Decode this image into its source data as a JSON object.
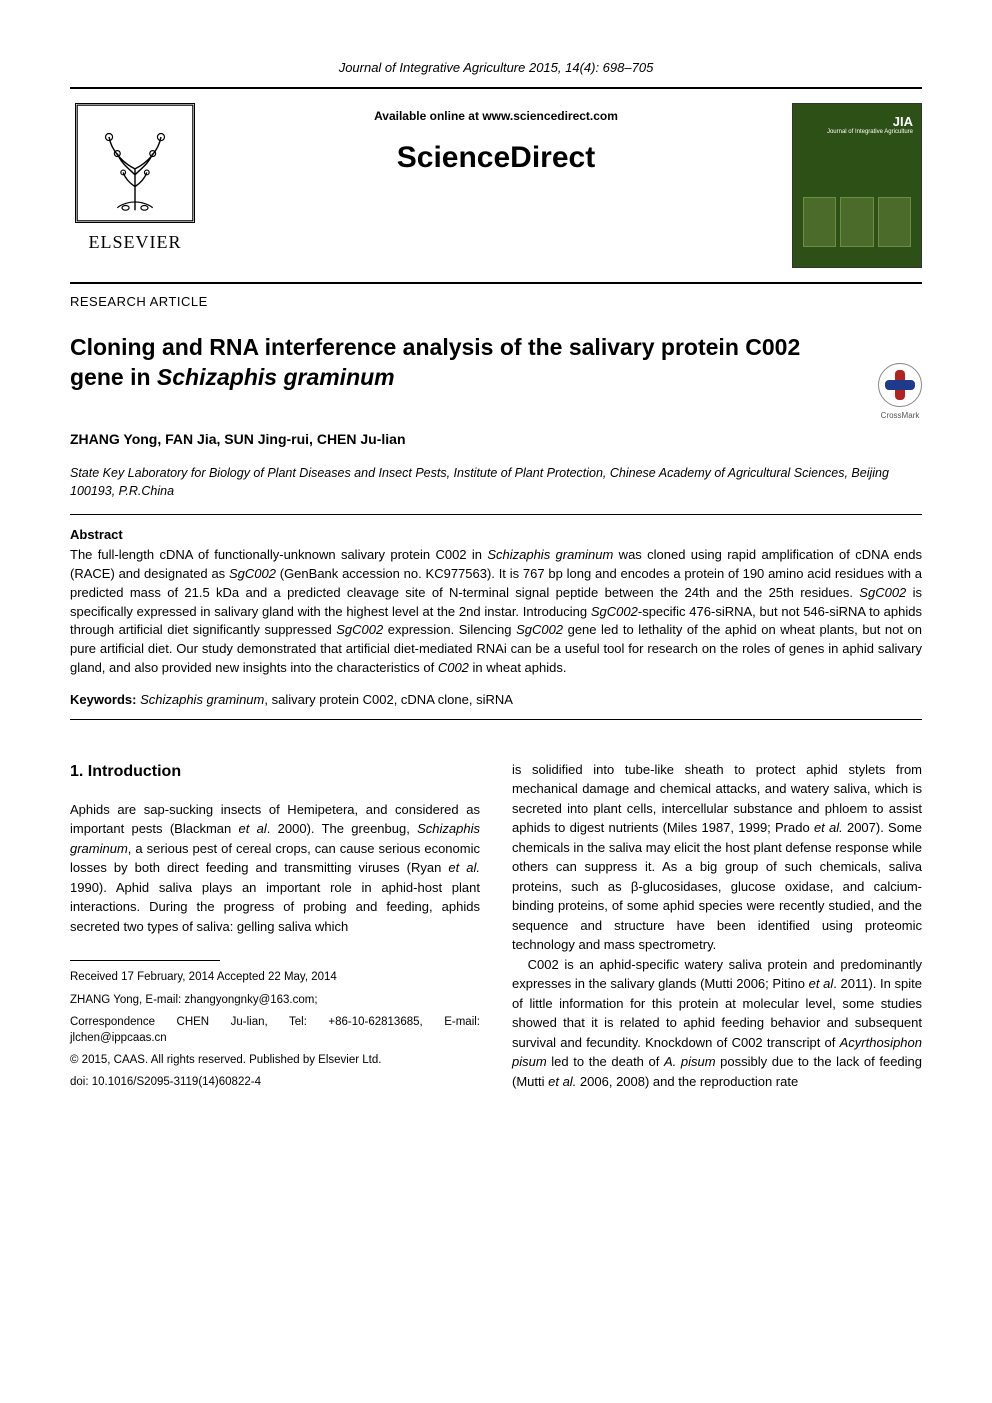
{
  "journal_header": "Journal of Integrative Agriculture  2015, 14(4): 698–705",
  "header": {
    "available_online": "Available online at www.sciencedirect.com",
    "brand": "ScienceDirect",
    "publisher_label": "ELSEVIER",
    "cover_label_top": "JIA",
    "cover_label_sub": "Journal of Integrative Agriculture"
  },
  "article_type": "RESEARCH  ARTICLE",
  "title_parts": {
    "prefix": "Cloning and RNA interference analysis of the salivary protein C002 gene in ",
    "species": "Schizaphis graminum"
  },
  "crossmark_label": "CrossMark",
  "authors": "ZHANG Yong, FAN Jia, SUN Jing-rui, CHEN Ju-lian",
  "affiliation": "State Key Laboratory for Biology of Plant Diseases and Insect Pests, Institute of Plant Protection, Chinese Academy of Agricultural Sciences, Beijing 100193, P.R.China",
  "abstract": {
    "heading": "Abstract",
    "text_segments": [
      {
        "t": "The full-length cDNA of functionally-unknown salivary protein C002 in ",
        "i": false
      },
      {
        "t": "Schizaphis graminum",
        "i": true
      },
      {
        "t": " was cloned using rapid amplification of cDNA ends (RACE) and designated as ",
        "i": false
      },
      {
        "t": "SgC002",
        "i": true
      },
      {
        "t": " (GenBank accession no. KC977563).  It is 767 bp long and encodes a protein of 190 amino acid residues with a predicted mass of 21.5 kDa and a predicted cleavage site of N-terminal signal peptide between the 24th and the 25th residues.  ",
        "i": false
      },
      {
        "t": "SgC002",
        "i": true
      },
      {
        "t": " is specifically expressed in salivary gland with the highest level at the 2nd instar.  Introducing ",
        "i": false
      },
      {
        "t": "SgC002",
        "i": true
      },
      {
        "t": "-specific 476-siRNA, but not 546-siRNA to aphids through artificial diet significantly suppressed ",
        "i": false
      },
      {
        "t": "SgC002",
        "i": true
      },
      {
        "t": " expression.  Silencing ",
        "i": false
      },
      {
        "t": "SgC002",
        "i": true
      },
      {
        "t": " gene led to lethality of the aphid on wheat plants, but not on pure artificial diet.  Our study demonstrated that artificial diet-mediated RNAi can be a useful tool for research on the roles of genes in aphid salivary gland, and also provided new insights into the characteristics of ",
        "i": false
      },
      {
        "t": "C002",
        "i": true
      },
      {
        "t": " in wheat aphids.",
        "i": false
      }
    ]
  },
  "keywords": {
    "label": "Keywords: ",
    "segments": [
      {
        "t": "Schizaphis graminum",
        "i": true
      },
      {
        "t": ", salivary protein C002, cDNA clone, siRNA",
        "i": false
      }
    ]
  },
  "left_column": {
    "heading": "1. Introduction",
    "para_segments": [
      {
        "t": "Aphids are sap-sucking insects of Hemipetera, and considered as important pests (Blackman ",
        "i": false
      },
      {
        "t": "et al",
        "i": true
      },
      {
        "t": ". 2000).  The greenbug, ",
        "i": false
      },
      {
        "t": "Schizaphis graminum",
        "i": true
      },
      {
        "t": ", a serious pest of cereal crops, can cause serious economic losses by both direct feeding and transmitting viruses (Ryan ",
        "i": false
      },
      {
        "t": "et al.",
        "i": true
      },
      {
        "t": " 1990).  Aphid saliva plays an important role in aphid-host plant interactions.  During the progress of probing and feeding, aphids secreted two types of saliva: gelling saliva which",
        "i": false
      }
    ]
  },
  "right_column": {
    "para1_segments": [
      {
        "t": "is solidified into tube-like sheath to protect aphid stylets from mechanical damage and chemical attacks, and watery saliva, which is secreted into plant cells, intercellular substance and phloem to assist aphids to digest nutrients (Miles 1987, 1999; Prado ",
        "i": false
      },
      {
        "t": "et al.",
        "i": true
      },
      {
        "t": " 2007).  Some chemicals in the saliva may elicit the host plant defense response while others can suppress it.  As a big group of such chemicals, saliva proteins, such as β-glucosidases, glucose oxidase, and calcium-binding proteins, of some aphid species were recently studied, and the sequence and structure have been identified using proteomic technology and mass spectrometry.",
        "i": false
      }
    ],
    "para2_segments": [
      {
        "t": "C002 is an aphid-specific watery saliva protein and predominantly expresses in the salivary glands (Mutti 2006; Pitino ",
        "i": false
      },
      {
        "t": "et al",
        "i": true
      },
      {
        "t": ". 2011).  In spite of little information for this protein at molecular level, some studies showed that it is related to aphid feeding behavior and subsequent survival and fecundity.  Knockdown of C002 transcript of ",
        "i": false
      },
      {
        "t": "Acyrthosiphon pisum",
        "i": true
      },
      {
        "t": " led to the death of ",
        "i": false
      },
      {
        "t": "A. pisum",
        "i": true
      },
      {
        "t": " possibly due to the lack of feeding (Mutti ",
        "i": false
      },
      {
        "t": "et al.",
        "i": true
      },
      {
        "t": " 2006, 2008) and the reproduction rate",
        "i": false
      }
    ]
  },
  "footnotes": {
    "received": "Received  17 February, 2014    Accepted  22 May, 2014",
    "author_email": "ZHANG Yong, E-mail: zhangyongnky@163.com;",
    "correspondence": "Correspondence CHEN Ju-lian, Tel: +86-10-62813685, E-mail: jlchen@ippcaas.cn",
    "copyright": "© 2015, CAAS. All rights reserved. Published by Elsevier Ltd.",
    "doi": "doi: 10.1016/S2095-3119(14)60822-4"
  },
  "colors": {
    "text": "#000000",
    "background": "#ffffff",
    "cover_bg": "#2d5016",
    "crossmark_red": "#b22222",
    "crossmark_blue": "#1e3a8a"
  }
}
